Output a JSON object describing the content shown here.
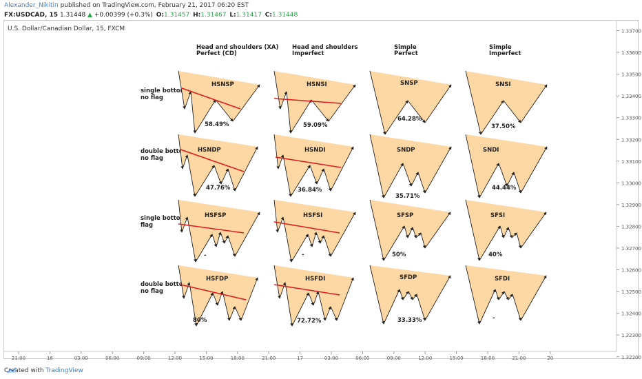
{
  "header": {
    "author": "Alexander_Nikitin",
    "published": " published on TradingView.com, February 21, 2017 06:20 EST",
    "symbol": "FX:USDCAD, 15",
    "last": "1.31448",
    "change": "+0.00399 (+0.3%)",
    "o_label": "O:",
    "o": "1.31457",
    "h_label": "H:",
    "h": "1.31467",
    "l_label": "L:",
    "l": "1.31417",
    "c_label": "C:",
    "c": "1.31448"
  },
  "footer": {
    "created_with": "Created with",
    "brand": "TradingView"
  },
  "colors": {
    "fill": "#fdd7a4",
    "neck": "#e0191e",
    "line": "#222222",
    "axis_text": "#555555",
    "author": "#3b7fd0",
    "up": "#2aa24a"
  },
  "chart_data": {
    "type": "line",
    "title": "U.S. Dollar/Canadian Dollar, 15, FXCM",
    "y_ticks": [
      "1.33700",
      "1.33600",
      "1.33500",
      "1.33400",
      "1.33300",
      "1.33200",
      "1.33100",
      "1.33000",
      "1.32900",
      "1.32800",
      "1.32700",
      "1.32600",
      "1.32500",
      "1.32400",
      "1.32300",
      "1.32200"
    ],
    "x_ticks": [
      "21:00",
      "16",
      "03:00",
      "06:00",
      "09:00",
      "12:00",
      "15:00",
      "18:00",
      "21:00",
      "17",
      "03:00",
      "06:00",
      "09:00",
      "12:00",
      "15:00",
      "18:00",
      "21:00",
      "20"
    ],
    "column_headers": [
      {
        "line1": "Head and shoulders (XA)",
        "line2": "Perfect (CD)"
      },
      {
        "line1": "Head and shoulders",
        "line2": "Imperfect"
      },
      {
        "line1": "Simple",
        "line2": "Perfect"
      },
      {
        "line1": "Simple",
        "line2": "Imperfect"
      }
    ],
    "row_labels": [
      {
        "line1": "single bottom",
        "line2": "no flag"
      },
      {
        "line1": "double bottom",
        "line2": "no flag"
      },
      {
        "line1": "single bottom",
        "line2": "flag"
      },
      {
        "line1": "double bottom",
        "line2": "no flag"
      }
    ],
    "patterns": [
      [
        {
          "name": "HSNSP",
          "pct": "58.49%"
        },
        {
          "name": "HSNSI",
          "pct": "59.09%"
        },
        {
          "name": "SNSP",
          "pct": "64.28%"
        },
        {
          "name": "SNSI",
          "pct": "37.50%"
        }
      ],
      [
        {
          "name": "HSNDP",
          "pct": "47.76%"
        },
        {
          "name": "HSNDI",
          "pct": "36.84%"
        },
        {
          "name": "SNDP",
          "pct": "35.71%"
        },
        {
          "name": "SNDI",
          "pct": "44.44%"
        }
      ],
      [
        {
          "name": "HSFSP",
          "pct": "-"
        },
        {
          "name": "HSFSI",
          "pct": "-"
        },
        {
          "name": "SFSP",
          "pct": "50%"
        },
        {
          "name": "SFSI",
          "pct": "40%"
        }
      ],
      [
        {
          "name": "HSFDP",
          "pct": "80%"
        },
        {
          "name": "HSFDI",
          "pct": "72.72%"
        },
        {
          "name": "SFDP",
          "pct": "33.33%"
        },
        {
          "name": "SFDI",
          "pct": "-"
        }
      ]
    ]
  }
}
